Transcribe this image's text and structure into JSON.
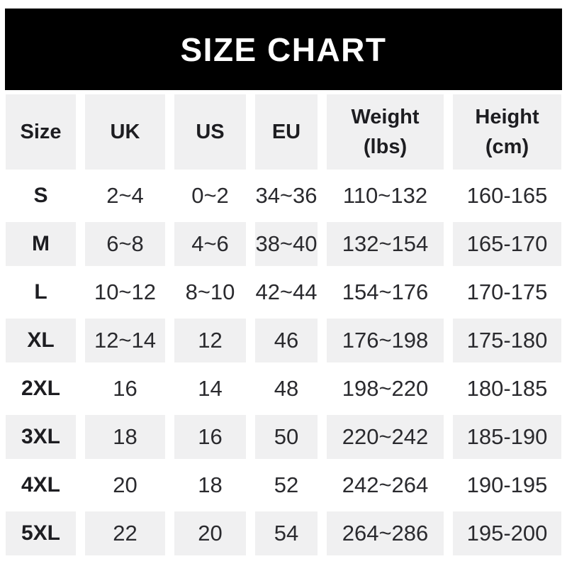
{
  "banner": {
    "title": "SIZE CHART"
  },
  "colors": {
    "banner_bg": "#000000",
    "banner_text": "#ffffff",
    "shaded_cell_bg": "#f0f0f1",
    "page_bg": "#ffffff",
    "text_dark": "#1d1d21",
    "text_data": "#2a2a2e"
  },
  "chart_data": {
    "type": "table",
    "title": "SIZE CHART",
    "columns": [
      "Size",
      "UK",
      "US",
      "EU",
      "Weight\n(lbs)",
      "Height\n(cm)"
    ],
    "rows": [
      {
        "size": "S",
        "uk": "2~4",
        "us": "0~2",
        "eu": "34~36",
        "weight_lbs": "110~132",
        "height_cm": "160-165"
      },
      {
        "size": "M",
        "uk": "6~8",
        "us": "4~6",
        "eu": "38~40",
        "weight_lbs": "132~154",
        "height_cm": "165-170"
      },
      {
        "size": "L",
        "uk": "10~12",
        "us": "8~10",
        "eu": "42~44",
        "weight_lbs": "154~176",
        "height_cm": "170-175"
      },
      {
        "size": "XL",
        "uk": "12~14",
        "us": "12",
        "eu": "46",
        "weight_lbs": "176~198",
        "height_cm": "175-180"
      },
      {
        "size": "2XL",
        "uk": "16",
        "us": "14",
        "eu": "48",
        "weight_lbs": "198~220",
        "height_cm": "180-185"
      },
      {
        "size": "3XL",
        "uk": "18",
        "us": "16",
        "eu": "50",
        "weight_lbs": "220~242",
        "height_cm": "185-190"
      },
      {
        "size": "4XL",
        "uk": "20",
        "us": "18",
        "eu": "52",
        "weight_lbs": "242~264",
        "height_cm": "190-195"
      },
      {
        "size": "5XL",
        "uk": "22",
        "us": "20",
        "eu": "54",
        "weight_lbs": "264~286",
        "height_cm": "195-200"
      }
    ]
  }
}
